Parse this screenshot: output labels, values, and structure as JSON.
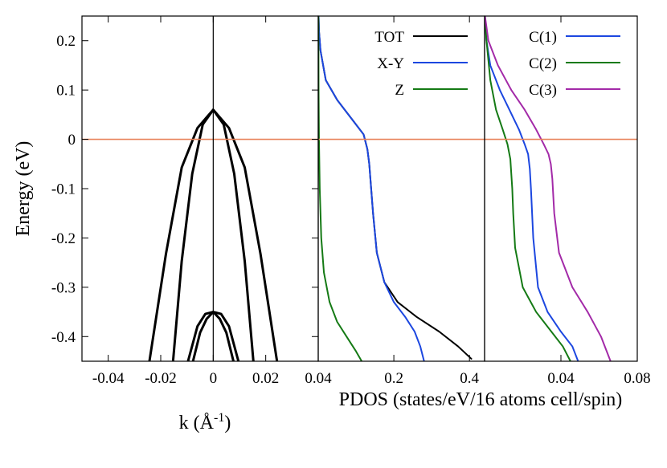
{
  "chart_data": [
    {
      "type": "line",
      "panel": "band-structure",
      "xlabel": "k (Å-1)",
      "xlabel_main": "k (Å",
      "xlabel_sup": "-1",
      "xlabel_close": ")",
      "ylabel": "Energy (eV)",
      "xlim": [
        -0.05,
        0.04
      ],
      "ylim": [
        -0.45,
        0.25
      ],
      "xticks": [
        -0.04,
        -0.02,
        0,
        0.02,
        0.04
      ],
      "xtick_labels": [
        "-0.04",
        "-0.02",
        "0",
        "0.02",
        "0.04"
      ],
      "yticks": [
        0.2,
        0.1,
        0,
        -0.1,
        -0.2,
        -0.3,
        -0.4
      ],
      "ytick_labels": [
        "0.2",
        "0.1",
        "0",
        "-0.1",
        "-0.2",
        "-0.3",
        "-0.4"
      ],
      "fermi_level": 0,
      "vertical_line_x": 0,
      "series": [
        {
          "color": "#000000",
          "x": [
            -0.0243,
            -0.018,
            -0.012,
            -0.006,
            0,
            0.006,
            0.012,
            0.018,
            0.0243
          ],
          "y": [
            -0.45,
            -0.232,
            -0.057,
            0.023,
            0.06,
            0.023,
            -0.057,
            -0.232,
            -0.45
          ]
        },
        {
          "color": "#000000",
          "x": [
            -0.0153,
            -0.012,
            -0.008,
            -0.004,
            0,
            0.004,
            0.008,
            0.012,
            0.0153
          ],
          "y": [
            -0.45,
            -0.247,
            -0.07,
            0.03,
            0.06,
            0.03,
            -0.07,
            -0.247,
            -0.45
          ]
        },
        {
          "color": "#000000",
          "x": [
            -0.0096,
            -0.006,
            -0.003,
            0,
            0.003,
            0.006,
            0.0096
          ],
          "y": [
            -0.45,
            -0.379,
            -0.354,
            -0.35,
            -0.354,
            -0.379,
            -0.45
          ]
        },
        {
          "color": "#000000",
          "x": [
            -0.0077,
            -0.005,
            -0.0025,
            0,
            0.0025,
            0.005,
            0.0077
          ],
          "y": [
            -0.45,
            -0.392,
            -0.364,
            -0.35,
            -0.364,
            -0.392,
            -0.45
          ]
        }
      ]
    },
    {
      "type": "line",
      "panel": "pdos-total",
      "xlabel": "PDOS (states/eV/16 atoms cell/spin)",
      "xlim": [
        0,
        0.44
      ],
      "ylim": [
        -0.45,
        0.25
      ],
      "xticks": [
        0.2,
        0.4
      ],
      "xtick_labels": [
        "0.2",
        "0.4"
      ],
      "fermi_level": 0,
      "series": [
        {
          "name": "TOT",
          "color": "#000000",
          "x": [
            0.001,
            0.002,
            0.006,
            0.02,
            0.05,
            0.09,
            0.12,
            0.13,
            0.135,
            0.14,
            0.145,
            0.155,
            0.175,
            0.21,
            0.26,
            0.32,
            0.37,
            0.405
          ],
          "y": [
            0.25,
            0.22,
            0.18,
            0.12,
            0.08,
            0.04,
            0.01,
            -0.02,
            -0.05,
            -0.1,
            -0.15,
            -0.23,
            -0.29,
            -0.33,
            -0.36,
            -0.39,
            -0.42,
            -0.445
          ]
        },
        {
          "name": "X-Y",
          "color": "#1c47e0",
          "x": [
            0.001,
            0.002,
            0.006,
            0.02,
            0.05,
            0.09,
            0.12,
            0.13,
            0.135,
            0.14,
            0.145,
            0.155,
            0.175,
            0.2,
            0.23,
            0.255,
            0.27,
            0.28
          ],
          "y": [
            0.25,
            0.22,
            0.18,
            0.12,
            0.08,
            0.04,
            0.01,
            -0.02,
            -0.05,
            -0.1,
            -0.15,
            -0.23,
            -0.29,
            -0.33,
            -0.36,
            -0.39,
            -0.42,
            -0.45
          ]
        },
        {
          "name": "Z",
          "color": "#157a15",
          "x": [
            0.0005,
            0.001,
            0.002,
            0.004,
            0.008,
            0.015,
            0.03,
            0.05,
            0.075,
            0.1,
            0.115
          ],
          "y": [
            0.25,
            0.1,
            0,
            -0.1,
            -0.2,
            -0.27,
            -0.33,
            -0.37,
            -0.4,
            -0.43,
            -0.45
          ]
        }
      ]
    },
    {
      "type": "line",
      "panel": "pdos-carbon",
      "xlim": [
        0,
        0.08
      ],
      "ylim": [
        -0.45,
        0.25
      ],
      "xticks": [
        0.04,
        0.08
      ],
      "xtick_labels": [
        "0.04",
        "0.08"
      ],
      "fermi_level": 0,
      "series": [
        {
          "name": "C(1)",
          "color": "#1c47e0",
          "x": [
            0.0002,
            0.001,
            0.003,
            0.008,
            0.013,
            0.018,
            0.021,
            0.0228,
            0.0237,
            0.0243,
            0.0255,
            0.028,
            0.033,
            0.04,
            0.046,
            0.049
          ],
          "y": [
            0.25,
            0.2,
            0.15,
            0.1,
            0.06,
            0.02,
            -0.01,
            -0.03,
            -0.06,
            -0.1,
            -0.2,
            -0.3,
            -0.35,
            -0.39,
            -0.42,
            -0.45
          ]
        },
        {
          "name": "C(2)",
          "color": "#157a15",
          "x": [
            0.0002,
            0.001,
            0.003,
            0.006,
            0.0095,
            0.012,
            0.0135,
            0.0145,
            0.015,
            0.016,
            0.02,
            0.027,
            0.035,
            0.041,
            0.045
          ],
          "y": [
            0.25,
            0.2,
            0.12,
            0.06,
            0.02,
            -0.01,
            -0.04,
            -0.1,
            -0.15,
            -0.22,
            -0.3,
            -0.35,
            -0.39,
            -0.42,
            -0.45
          ]
        },
        {
          "name": "C(3)",
          "color": "#a32aa8",
          "x": [
            0.0002,
            0.002,
            0.007,
            0.014,
            0.021,
            0.027,
            0.031,
            0.0335,
            0.0347,
            0.0355,
            0.0365,
            0.039,
            0.046,
            0.054,
            0.061,
            0.066
          ],
          "y": [
            0.25,
            0.2,
            0.15,
            0.1,
            0.06,
            0.02,
            -0.01,
            -0.03,
            -0.05,
            -0.08,
            -0.15,
            -0.23,
            -0.3,
            -0.35,
            -0.4,
            -0.45
          ]
        }
      ]
    }
  ]
}
